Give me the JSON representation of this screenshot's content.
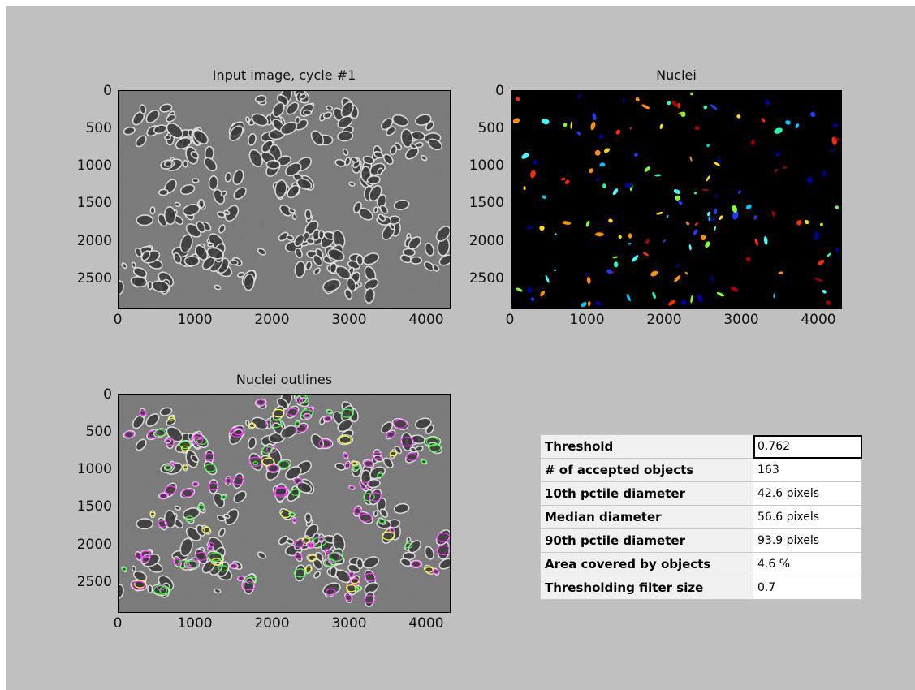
{
  "panels": [
    {
      "title": "Input image, cycle #1",
      "yticks": [
        "0",
        "500",
        "1000",
        "1500",
        "2000",
        "2500"
      ],
      "xticks": [
        "0",
        "1000",
        "2000",
        "3000",
        "4000"
      ]
    },
    {
      "title": "Nuclei",
      "yticks": [
        "0",
        "500",
        "1000",
        "1500",
        "2000",
        "2500"
      ],
      "xticks": [
        "0",
        "1000",
        "2000",
        "3000",
        "4000"
      ]
    },
    {
      "title": "Nuclei outlines",
      "yticks": [
        "0",
        "500",
        "1000",
        "1500",
        "2000",
        "2500"
      ],
      "xticks": [
        "0",
        "1000",
        "2000",
        "3000",
        "4000"
      ]
    }
  ],
  "measurements": [
    {
      "label": "Threshold",
      "value": "0.762"
    },
    {
      "label": "# of accepted objects",
      "value": "163"
    },
    {
      "label": "10th pctile diameter",
      "value": "42.6 pixels"
    },
    {
      "label": "Median diameter",
      "value": "56.6 pixels"
    },
    {
      "label": "90th pctile diameter",
      "value": "93.9 pixels"
    },
    {
      "label": "Area covered by objects",
      "value": "4.6 %"
    },
    {
      "label": "Thresholding filter size",
      "value": "0.7"
    }
  ],
  "colors": {
    "figure_bg": "#c0c0c0",
    "outline_primary": "#ff33ff",
    "outline_secondary": "#33ff33",
    "outline_tertiary": "#ffff33"
  }
}
